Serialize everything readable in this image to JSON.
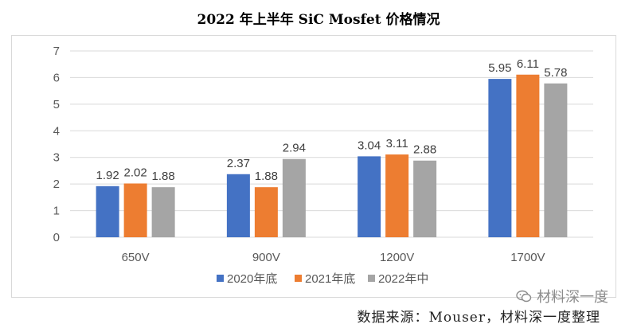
{
  "chart_data": {
    "type": "bar",
    "title": "2022 年上半年 SiC Mosfet 价格情况",
    "categories": [
      "650V",
      "900V",
      "1200V",
      "1700V"
    ],
    "series": [
      {
        "name": "2020年底",
        "color": "#4472c4",
        "values": [
          1.92,
          2.37,
          3.04,
          5.95
        ]
      },
      {
        "name": "2021年底",
        "color": "#ed7d31",
        "values": [
          2.02,
          1.88,
          3.11,
          6.11
        ]
      },
      {
        "name": "2022年中",
        "color": "#a5a5a5",
        "values": [
          1.88,
          2.94,
          2.88,
          5.78
        ]
      }
    ],
    "yticks": [
      0,
      1,
      2,
      3,
      4,
      5,
      6,
      7
    ],
    "ylim": [
      0,
      7
    ],
    "grid": true,
    "legend": "bottom",
    "data_labels": true
  },
  "source_text": "数据来源：Mouser，材料深一度整理",
  "watermark": {
    "text": "材料深一度",
    "icon": "wechat-icon"
  }
}
